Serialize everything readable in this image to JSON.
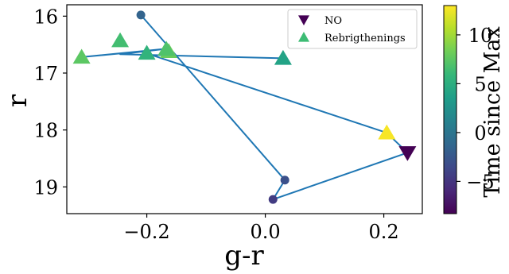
{
  "chart_data": {
    "type": "scatter",
    "xlabel": "g-r",
    "ylabel": "r",
    "x_ticks": [
      -0.2,
      0.0,
      0.2
    ],
    "x_tick_labels": [
      "−0.2",
      "0.0",
      "0.2"
    ],
    "y_ticks": [
      16,
      17,
      18,
      19
    ],
    "y_tick_labels": [
      "16",
      "17",
      "18",
      "19"
    ],
    "xlim": [
      -0.335,
      0.265
    ],
    "ylim": [
      19.47,
      15.8
    ],
    "y_inverted": true,
    "legend": {
      "placement": "top-right",
      "entries": [
        {
          "label": "NO",
          "marker": "triangle-down",
          "color": "#440154"
        },
        {
          "label": "Rebrigthenings",
          "marker": "triangle-up",
          "color": "#3dbc74"
        }
      ]
    },
    "colorbar": {
      "label": "Time since Max",
      "ticks": [
        -5,
        0,
        5,
        10
      ],
      "tick_labels": [
        "−5",
        "0",
        "5",
        "10"
      ],
      "range": [
        -8.3,
        13.0
      ],
      "colormap": [
        "#440154",
        "#482878",
        "#3e4989",
        "#31688e",
        "#26828e",
        "#1f9e89",
        "#35b779",
        "#6ece58",
        "#b5de2b",
        "#fde725"
      ]
    },
    "path": {
      "color": "#1f77b4",
      "points": [
        {
          "x": -0.21,
          "y": 15.98
        },
        {
          "x": 0.033,
          "y": 18.88
        },
        {
          "x": 0.013,
          "y": 19.22
        },
        {
          "x": 0.24,
          "y": 18.4
        },
        {
          "x": 0.205,
          "y": 18.05
        },
        {
          "x": -0.21,
          "y": 16.62
        },
        {
          "x": -0.31,
          "y": 16.72
        },
        {
          "x": -0.165,
          "y": 16.57
        },
        {
          "x": -0.245,
          "y": 16.67
        },
        {
          "x": 0.03,
          "y": 16.74
        }
      ]
    },
    "circles": [
      {
        "x": -0.21,
        "y": 15.98,
        "t": -1.5
      },
      {
        "x": 0.033,
        "y": 18.88,
        "t": -3
      },
      {
        "x": 0.013,
        "y": 19.22,
        "t": -4.5
      }
    ],
    "no_points": [
      {
        "x": 0.24,
        "y": 18.4,
        "t": -8.3
      }
    ],
    "rebrightening_points": [
      {
        "x": 0.205,
        "y": 18.05,
        "t": 12.8
      },
      {
        "x": -0.31,
        "y": 16.72,
        "t": 7.5
      },
      {
        "x": -0.245,
        "y": 16.43,
        "t": 6.5
      },
      {
        "x": -0.2,
        "y": 16.65,
        "t": 5.5
      },
      {
        "x": -0.163,
        "y": 16.62,
        "t": 8
      },
      {
        "x": -0.167,
        "y": 16.58,
        "t": 7
      },
      {
        "x": 0.03,
        "y": 16.74,
        "t": 4
      }
    ]
  }
}
